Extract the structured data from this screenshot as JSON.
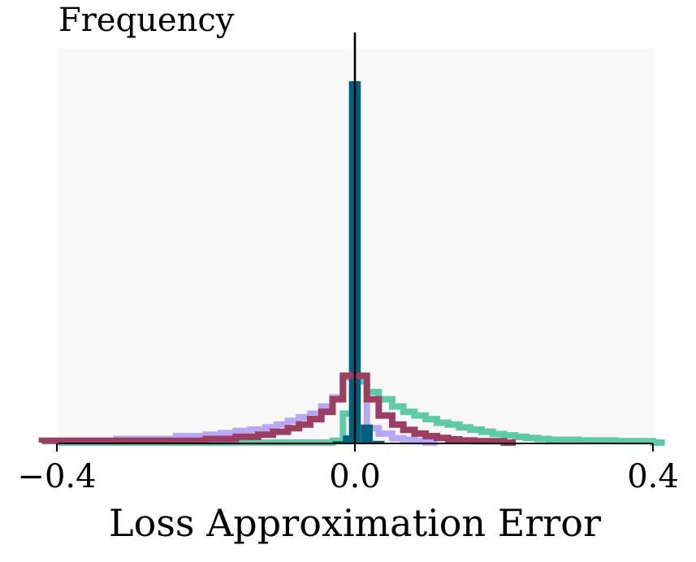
{
  "chart_data": {
    "type": "histogram",
    "ylabel": "Frequency",
    "xlabel": "Loss Approximation Error",
    "xlim": [
      -0.42,
      0.4
    ],
    "ylim": [
      0,
      1.0
    ],
    "x_ticks": [
      {
        "value": -0.4,
        "label": "−0.4"
      },
      {
        "value": 0.0,
        "label": "0.0"
      },
      {
        "value": 0.4,
        "label": "0.4"
      }
    ],
    "vline_x": 0.0,
    "grid": false,
    "legend": "none",
    "background_color": "#f8f8f8",
    "bin_width": 0.0159,
    "series": [
      {
        "style": "step",
        "color": "#b8a8f4",
        "bins": [
          [
            -0.4,
            0.005
          ],
          [
            -0.32,
            0.01
          ],
          [
            -0.24,
            0.018
          ],
          [
            -0.2,
            0.022
          ],
          [
            -0.18,
            0.026
          ],
          [
            -0.16,
            0.032
          ],
          [
            -0.14,
            0.036
          ],
          [
            -0.12,
            0.042
          ],
          [
            -0.105,
            0.05
          ],
          [
            -0.09,
            0.06
          ],
          [
            -0.075,
            0.07
          ],
          [
            -0.06,
            0.08
          ],
          [
            -0.045,
            0.1
          ],
          [
            -0.03,
            0.125
          ],
          [
            -0.016,
            0.18
          ],
          [
            0.0,
            0.18
          ],
          [
            0.016,
            0.04
          ],
          [
            0.032,
            0.025
          ],
          [
            0.05,
            0.012
          ],
          [
            0.065,
            0.008
          ],
          [
            0.08,
            0.004
          ],
          [
            0.095,
            0.0
          ]
        ]
      },
      {
        "style": "step",
        "color": "#5ecba7",
        "bins": [
          [
            -0.4,
            0.0
          ],
          [
            -0.03,
            0.005
          ],
          [
            -0.016,
            0.08
          ],
          [
            0.0,
            0.17
          ],
          [
            0.016,
            0.14
          ],
          [
            0.032,
            0.12
          ],
          [
            0.05,
            0.1
          ],
          [
            0.065,
            0.085
          ],
          [
            0.08,
            0.075
          ],
          [
            0.095,
            0.065
          ],
          [
            0.11,
            0.055
          ],
          [
            0.125,
            0.05
          ],
          [
            0.14,
            0.042
          ],
          [
            0.155,
            0.036
          ],
          [
            0.17,
            0.03
          ],
          [
            0.185,
            0.024
          ],
          [
            0.2,
            0.02
          ],
          [
            0.215,
            0.016
          ],
          [
            0.23,
            0.013
          ],
          [
            0.245,
            0.01
          ],
          [
            0.26,
            0.008
          ],
          [
            0.3,
            0.006
          ],
          [
            0.35,
            0.004
          ],
          [
            0.4,
            0.0
          ]
        ]
      },
      {
        "style": "bar",
        "color": "#00607e",
        "bins": [
          [
            -0.03,
            0.004
          ],
          [
            -0.016,
            0.02
          ],
          [
            -0.008,
            1.0
          ],
          [
            0.008,
            0.05
          ],
          [
            0.024,
            0.005
          ]
        ]
      },
      {
        "style": "step",
        "color": "#9c3d62",
        "bins": [
          [
            -0.42,
            0.005
          ],
          [
            -0.2,
            0.01
          ],
          [
            -0.16,
            0.016
          ],
          [
            -0.13,
            0.022
          ],
          [
            -0.11,
            0.03
          ],
          [
            -0.09,
            0.04
          ],
          [
            -0.075,
            0.05
          ],
          [
            -0.06,
            0.065
          ],
          [
            -0.045,
            0.085
          ],
          [
            -0.03,
            0.12
          ],
          [
            -0.016,
            0.185
          ],
          [
            0.0,
            0.185
          ],
          [
            0.016,
            0.12
          ],
          [
            0.032,
            0.075
          ],
          [
            0.05,
            0.05
          ],
          [
            0.065,
            0.035
          ],
          [
            0.08,
            0.025
          ],
          [
            0.095,
            0.018
          ],
          [
            0.11,
            0.013
          ],
          [
            0.125,
            0.009
          ],
          [
            0.14,
            0.006
          ],
          [
            0.16,
            0.004
          ],
          [
            0.2,
            0.0
          ]
        ]
      }
    ]
  }
}
